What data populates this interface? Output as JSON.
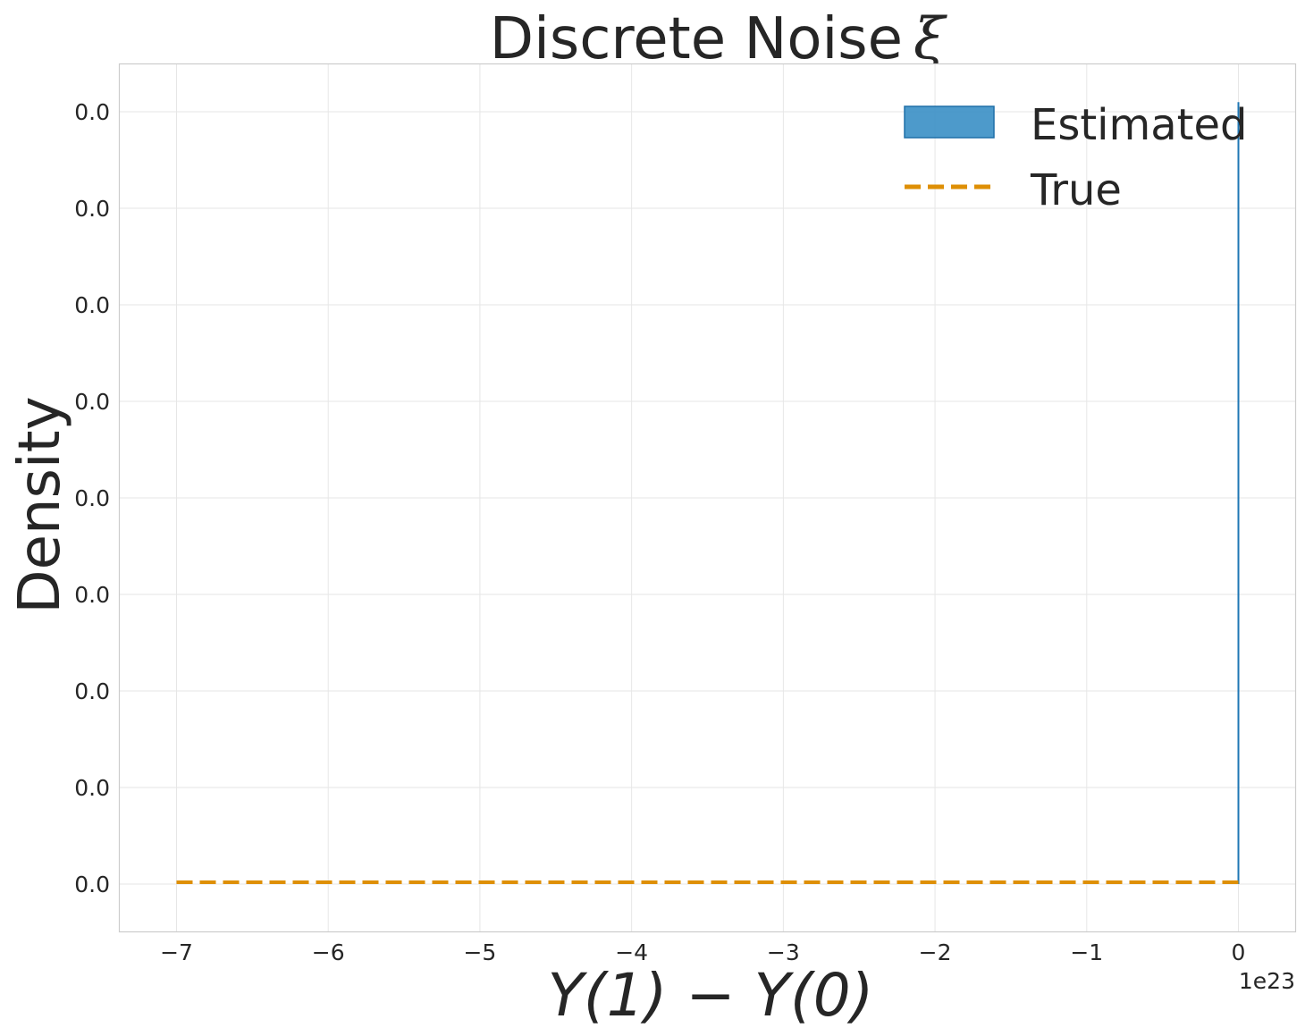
{
  "chart_data": {
    "type": "histogram",
    "title": "Discrete Noise",
    "title_symbol": "ξ",
    "xlabel": "Y(1) − Y(0)",
    "ylabel": "Density",
    "x_offset_label": "1e23",
    "xlim": [
      -7.38,
      0.38
    ],
    "ylim": [
      -5e-07,
      8.5e-06
    ],
    "x_ticks": [
      -7,
      -6,
      -5,
      -4,
      -3,
      -2,
      -1,
      0
    ],
    "x_tick_labels": [
      "−7",
      "−6",
      "−5",
      "−4",
      "−3",
      "−2",
      "−1",
      "0"
    ],
    "y_ticks": [
      0,
      1e-06,
      2e-06,
      3e-06,
      4e-06,
      5e-06,
      6e-06,
      7e-06,
      8e-06
    ],
    "y_tick_labels": [
      "0.0",
      "0.0",
      "0.0",
      "0.0",
      "0.0",
      "0.0",
      "0.0",
      "0.0",
      "0.0"
    ],
    "grid": true,
    "legend_position": "top-right",
    "series": [
      {
        "name": "Estimated",
        "kind": "histogram",
        "color": "#3a8fc5",
        "edge_color": "#1f77b4",
        "bars": [
          {
            "x": 0,
            "height": 8.1e-06
          }
        ]
      },
      {
        "name": "True",
        "kind": "line",
        "style": "dashed",
        "color": "#de8f05",
        "x": [
          -7,
          0
        ],
        "y": [
          0,
          0
        ]
      }
    ]
  }
}
